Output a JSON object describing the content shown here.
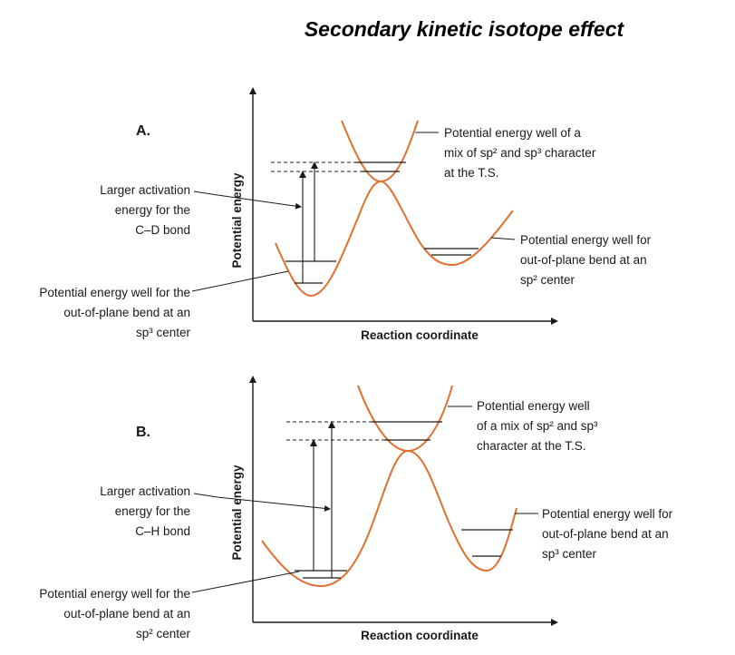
{
  "title": "Secondary kinetic isotope effect",
  "panel_a": {
    "letter": "A.",
    "ylabel": "Potential energy",
    "xlabel": "Reaction coordinate",
    "ts_label": [
      "Potential energy well of a",
      "mix of sp² and sp³ character",
      "at the T.S."
    ],
    "activation_label": [
      "Larger activation",
      "energy for the",
      "C–D bond"
    ],
    "right_well_label": [
      "Potential energy well for",
      "out-of-plane bend at an",
      "sp² center"
    ],
    "left_well_label": [
      "Potential energy well for the",
      "out-of-plane bend at an",
      "sp³ center"
    ]
  },
  "panel_b": {
    "letter": "B.",
    "ylabel": "Potential energy",
    "xlabel": "Reaction coordinate",
    "ts_label": [
      "Potential energy well",
      "of a mix of sp² and sp³",
      "character at the T.S."
    ],
    "activation_label": [
      "Larger activation",
      "energy for the",
      "C–H bond"
    ],
    "right_well_label": [
      "Potential energy well for",
      "out-of-plane bend at an",
      "sp³ center"
    ],
    "left_well_label": [
      "Potential energy well for the",
      "out-of-plane bend at an",
      "sp² center"
    ]
  },
  "colors": {
    "curve": "#e07030",
    "text": "#1a1a1a"
  }
}
